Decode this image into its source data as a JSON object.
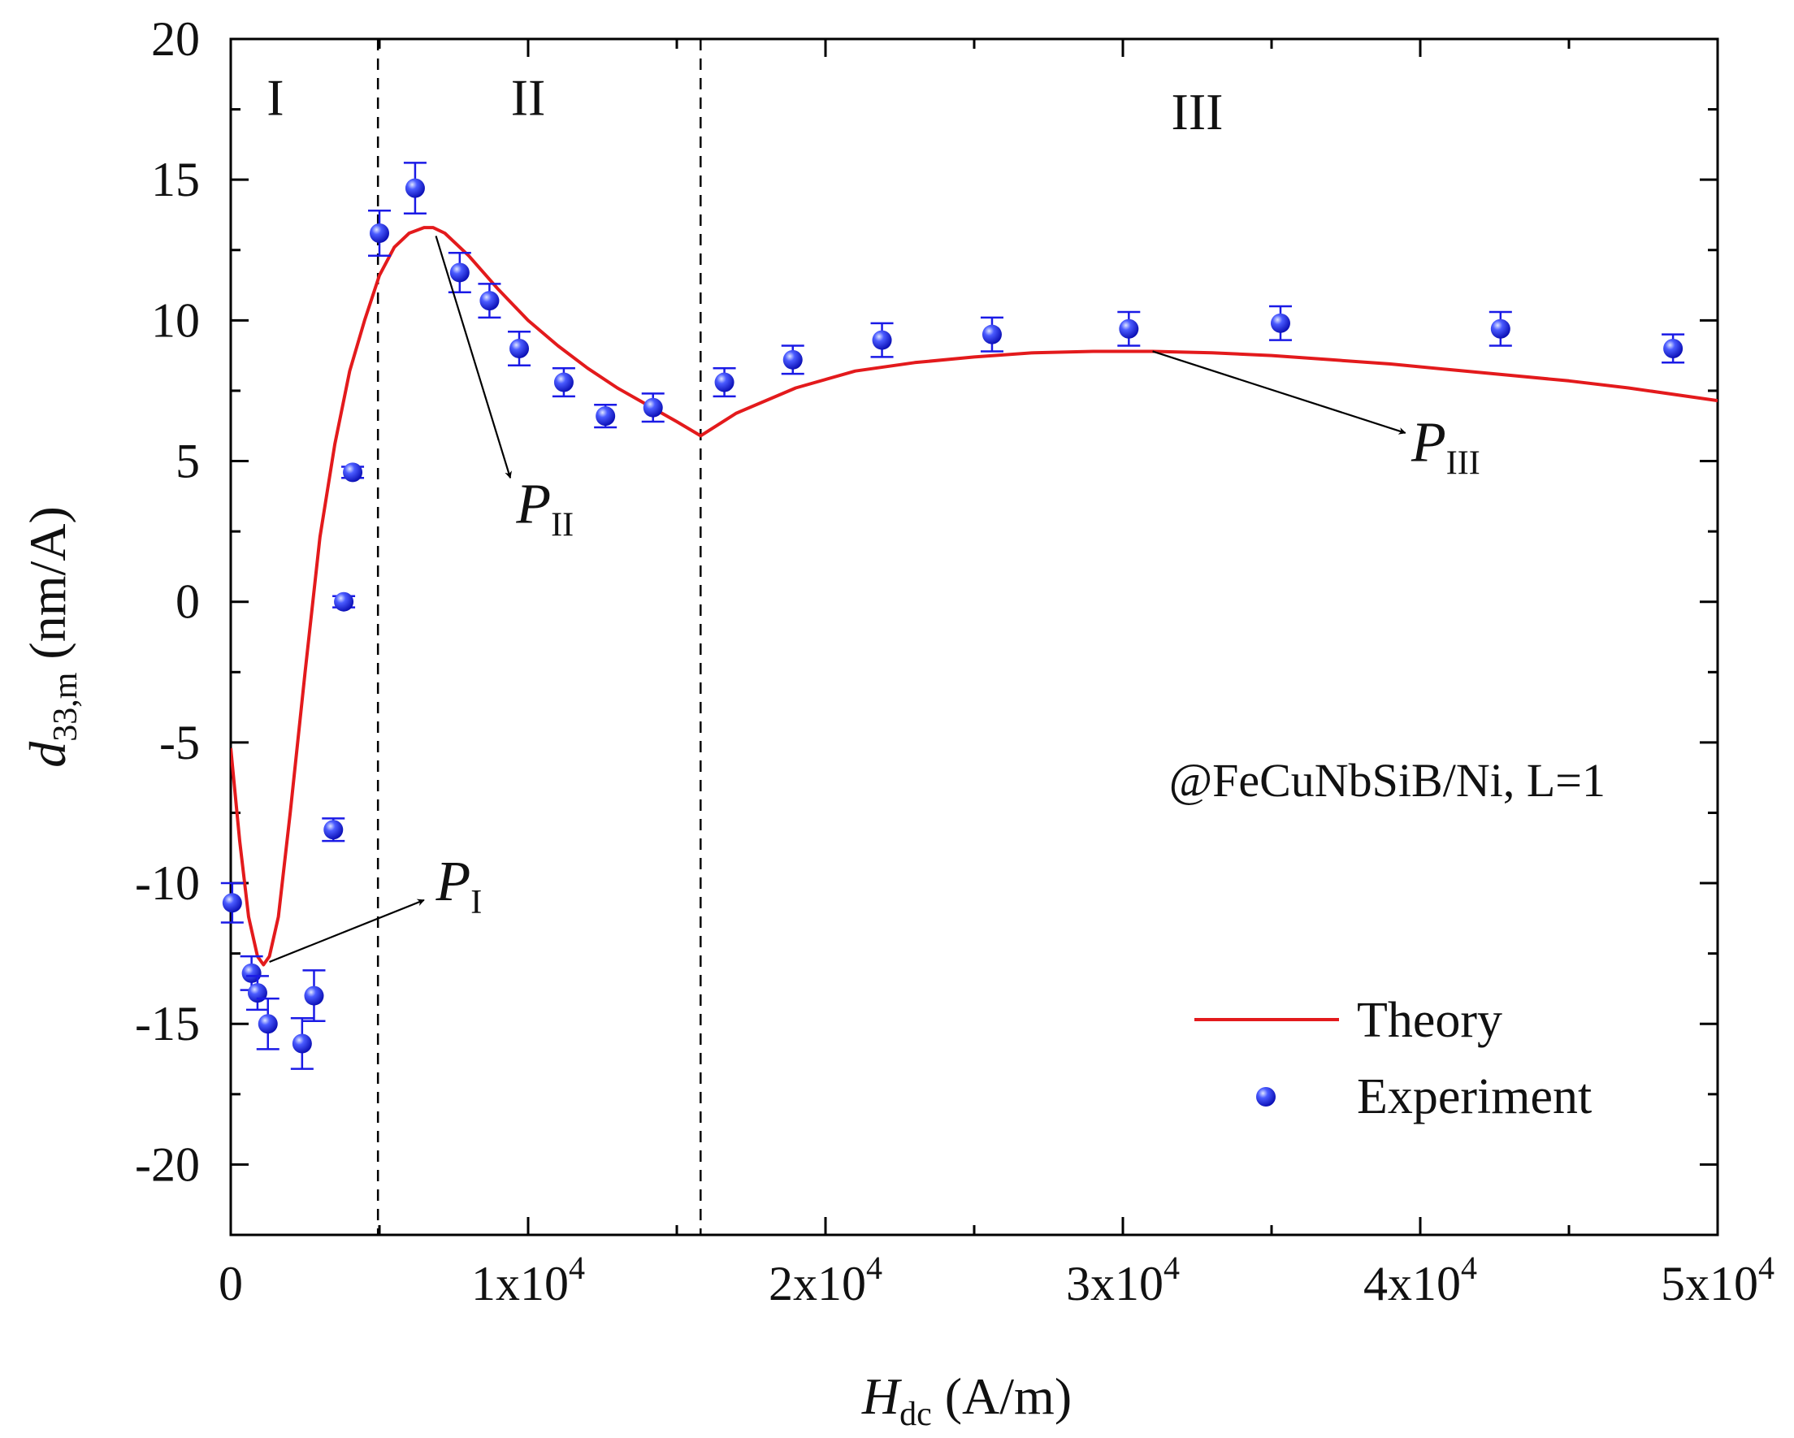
{
  "chart_data": {
    "type": "scatter",
    "title": "",
    "xlabel": {
      "main": "H",
      "sub": "dc",
      "unit": " (A/m)"
    },
    "ylabel": {
      "main": "d",
      "sub": "33,m",
      "unit": " (nm/A)"
    },
    "xlim": [
      0,
      50000
    ],
    "ylim": [
      -22.5,
      20
    ],
    "x_ticks": [
      {
        "value": 0,
        "label": "0",
        "exp": ""
      },
      {
        "value": 10000,
        "label": "1x10",
        "exp": "4"
      },
      {
        "value": 20000,
        "label": "2x10",
        "exp": "4"
      },
      {
        "value": 30000,
        "label": "3x10",
        "exp": "4"
      },
      {
        "value": 40000,
        "label": "4x10",
        "exp": "4"
      },
      {
        "value": 50000,
        "label": "5x10",
        "exp": "4"
      }
    ],
    "y_ticks": [
      {
        "value": 20,
        "label": "20"
      },
      {
        "value": 15,
        "label": "15"
      },
      {
        "value": 10,
        "label": "10"
      },
      {
        "value": 5,
        "label": "5"
      },
      {
        "value": 0,
        "label": "0"
      },
      {
        "value": -5,
        "label": "-5"
      },
      {
        "value": -10,
        "label": "-10"
      },
      {
        "value": -15,
        "label": "-15"
      },
      {
        "value": -20,
        "label": "-20"
      }
    ],
    "region_boundaries": [
      4950,
      15800
    ],
    "region_labels": [
      {
        "text": "I",
        "x": 1500,
        "y": 17.3
      },
      {
        "text": "II",
        "x": 10000,
        "y": 17.3
      },
      {
        "text": "III",
        "x": 32500,
        "y": 16.8
      }
    ],
    "series": [
      {
        "name": "Theory",
        "kind": "line",
        "color": "#e31a1c",
        "x": [
          0,
          300,
          600,
          900,
          1100,
          1300,
          1600,
          2000,
          2500,
          3000,
          3500,
          4000,
          4500,
          5000,
          5500,
          6000,
          6500,
          6800,
          7200,
          8000,
          9000,
          10000,
          11000,
          12000,
          13000,
          14000,
          15000,
          15800,
          17000,
          19000,
          21000,
          23000,
          25000,
          27000,
          29000,
          31000,
          33000,
          35000,
          37000,
          39000,
          41000,
          43000,
          45000,
          47000,
          50000
        ],
        "y": [
          -5.2,
          -8.5,
          -11.2,
          -12.6,
          -12.9,
          -12.6,
          -11.2,
          -7.5,
          -2.5,
          2.3,
          5.6,
          8.2,
          10.0,
          11.6,
          12.6,
          13.1,
          13.3,
          13.3,
          13.1,
          12.3,
          11.1,
          10.0,
          9.1,
          8.3,
          7.6,
          7.0,
          6.4,
          5.9,
          6.7,
          7.6,
          8.2,
          8.5,
          8.7,
          8.85,
          8.9,
          8.9,
          8.85,
          8.75,
          8.6,
          8.45,
          8.25,
          8.05,
          7.85,
          7.6,
          7.15
        ]
      },
      {
        "name": "Experiment",
        "kind": "scatter",
        "color": "#1a1ae6",
        "points": [
          {
            "x": 50,
            "y": -10.7,
            "err": 0.7
          },
          {
            "x": 700,
            "y": -13.2,
            "err": 0.6
          },
          {
            "x": 900,
            "y": -13.9,
            "err": 0.6
          },
          {
            "x": 1250,
            "y": -15.0,
            "err": 0.9
          },
          {
            "x": 2400,
            "y": -15.7,
            "err": 0.9
          },
          {
            "x": 2800,
            "y": -14.0,
            "err": 0.9
          },
          {
            "x": 3450,
            "y": -8.1,
            "err": 0.4
          },
          {
            "x": 3800,
            "y": 0.0,
            "err": 0.2
          },
          {
            "x": 4100,
            "y": 4.6,
            "err": 0.2
          },
          {
            "x": 5000,
            "y": 13.1,
            "err": 0.8
          },
          {
            "x": 6200,
            "y": 14.7,
            "err": 0.9
          },
          {
            "x": 7700,
            "y": 11.7,
            "err": 0.7
          },
          {
            "x": 8700,
            "y": 10.7,
            "err": 0.6
          },
          {
            "x": 9700,
            "y": 9.0,
            "err": 0.6
          },
          {
            "x": 11200,
            "y": 7.8,
            "err": 0.5
          },
          {
            "x": 12600,
            "y": 6.6,
            "err": 0.4
          },
          {
            "x": 14200,
            "y": 6.9,
            "err": 0.5
          },
          {
            "x": 16600,
            "y": 7.8,
            "err": 0.5
          },
          {
            "x": 18900,
            "y": 8.6,
            "err": 0.5
          },
          {
            "x": 21900,
            "y": 9.3,
            "err": 0.6
          },
          {
            "x": 25600,
            "y": 9.5,
            "err": 0.6
          },
          {
            "x": 30200,
            "y": 9.7,
            "err": 0.6
          },
          {
            "x": 35300,
            "y": 9.9,
            "err": 0.6
          },
          {
            "x": 42700,
            "y": 9.7,
            "err": 0.6
          },
          {
            "x": 48500,
            "y": 9.0,
            "err": 0.5
          }
        ]
      }
    ],
    "annotations": [
      {
        "text": "@FeCuNbSiB/Ni, L=1"
      }
    ],
    "peak_labels": [
      {
        "main": "P",
        "sub": "I",
        "from": [
          1300,
          -12.8
        ],
        "to": [
          6500,
          -10.6
        ],
        "label_at": [
          6900,
          -10.6
        ]
      },
      {
        "main": "P",
        "sub": "II",
        "from": [
          6900,
          13.0
        ],
        "to": [
          9400,
          4.4
        ],
        "label_at": [
          9600,
          2.8
        ]
      },
      {
        "main": "P",
        "sub": "III",
        "from": [
          31000,
          8.9
        ],
        "to": [
          39500,
          6.0
        ],
        "label_at": [
          39700,
          5.0
        ]
      }
    ],
    "legend": {
      "position": "bottom-right",
      "entries": [
        "Theory",
        "Experiment"
      ]
    }
  }
}
